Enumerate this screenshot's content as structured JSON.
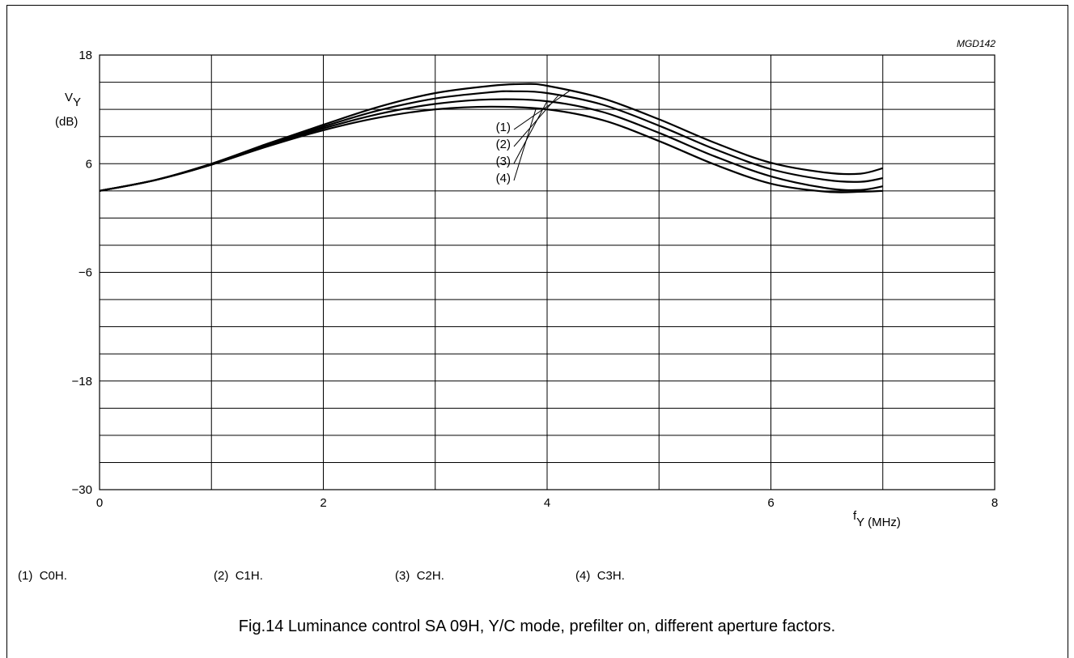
{
  "figure_id": "MGD142",
  "caption": "Fig.14  Luminance control SA 09H, Y/C mode, prefilter on, different aperture factors.",
  "legend": [
    {
      "key": "(1)",
      "label": "C0H."
    },
    {
      "key": "(2)",
      "label": "C1H."
    },
    {
      "key": "(3)",
      "label": "C2H."
    },
    {
      "key": "(4)",
      "label": "C3H."
    }
  ],
  "chart_data": {
    "type": "line",
    "xlim": [
      0,
      8
    ],
    "ylim": [
      -30,
      18
    ],
    "x_ticks": [
      0,
      2,
      4,
      6,
      8
    ],
    "y_ticks": [
      -30,
      -18,
      -6,
      6,
      18
    ],
    "x_tick_labels": [
      "0",
      "2",
      "4",
      "6",
      "8"
    ],
    "y_tick_labels": [
      "−30",
      "−18",
      "−6",
      "6",
      "18"
    ],
    "x_label_main": "f",
    "x_label_sub": "Y (MHz)",
    "y_label_main": "V",
    "y_label_sub": "Y",
    "y_unit": "(dB)",
    "grid": true,
    "series": [
      {
        "name": "(1)",
        "x": [
          0,
          0.5,
          1,
          1.5,
          2,
          2.5,
          3,
          3.5,
          3.8,
          4,
          4.5,
          5,
          5.5,
          6,
          6.5,
          6.8,
          7
        ],
        "y": [
          3,
          4.2,
          6,
          8.2,
          10.3,
          12.3,
          13.8,
          14.6,
          14.8,
          14.6,
          13.2,
          10.9,
          8.3,
          6.1,
          5,
          4.9,
          5.5
        ]
      },
      {
        "name": "(2)",
        "x": [
          0,
          0.5,
          1,
          1.5,
          2,
          2.5,
          3,
          3.5,
          3.7,
          4,
          4.5,
          5,
          5.5,
          6,
          6.5,
          6.8,
          7
        ],
        "y": [
          3,
          4.2,
          5.9,
          8.1,
          10.1,
          11.9,
          13.2,
          13.9,
          14,
          13.8,
          12.5,
          10.2,
          7.6,
          5.4,
          4.2,
          4,
          4.4
        ]
      },
      {
        "name": "(3)",
        "x": [
          0,
          0.5,
          1,
          1.5,
          2,
          2.5,
          3,
          3.5,
          4,
          4.5,
          5,
          5.5,
          6,
          6.5,
          6.8,
          7
        ],
        "y": [
          3,
          4.2,
          5.9,
          8,
          9.9,
          11.5,
          12.6,
          13.1,
          12.9,
          11.7,
          9.4,
          6.8,
          4.6,
          3.3,
          3.1,
          3.5
        ]
      },
      {
        "name": "(4)",
        "x": [
          0,
          0.5,
          1,
          1.5,
          2,
          2.5,
          3,
          3.5,
          4,
          4.5,
          5,
          5.5,
          6,
          6.5,
          6.8,
          7
        ],
        "y": [
          3,
          4.2,
          5.9,
          7.9,
          9.7,
          11.1,
          12,
          12.3,
          12,
          10.8,
          8.5,
          5.9,
          3.8,
          2.9,
          2.9,
          3
        ]
      }
    ]
  }
}
